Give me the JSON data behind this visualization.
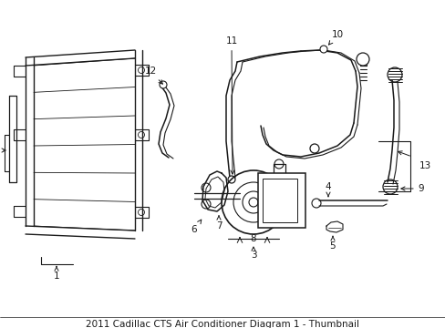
{
  "background_color": "#ffffff",
  "line_color": "#1a1a1a",
  "line_width": 1.0,
  "label_fontsize": 7.5,
  "fig_width": 4.89,
  "fig_height": 3.6,
  "dpi": 100
}
